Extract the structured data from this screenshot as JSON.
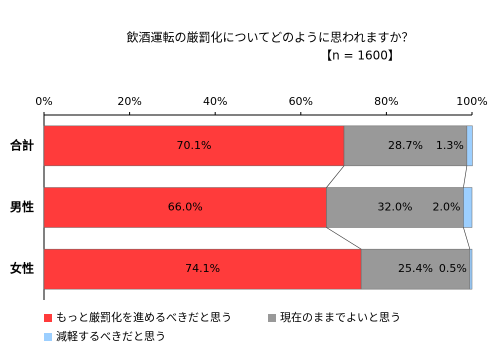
{
  "chart_data": {
    "type": "bar",
    "orientation": "horizontal",
    "stacked": true,
    "title": "飲酒運転の厳罰化についてどのように思われますか？",
    "subtitle": "【n = 1600】",
    "categories": [
      "合計",
      "男性",
      "女性"
    ],
    "series": [
      {
        "name": "もっと厳罰化を進めるべきだと思う",
        "color": "#ff3b3b",
        "values": [
          70.1,
          66.0,
          74.1
        ],
        "value_labels": [
          "70.1%",
          "66.0%",
          "74.1%"
        ]
      },
      {
        "name": "現在のままでよいと思う",
        "color": "#999999",
        "values": [
          28.7,
          32.0,
          25.4
        ],
        "value_labels": [
          "28.7%",
          "32.0%",
          "25.4%"
        ]
      },
      {
        "name": "減軽するべきだと思う",
        "color": "#9ccfff",
        "values": [
          1.3,
          2.0,
          0.5
        ],
        "value_labels": [
          "1.3%",
          "2.0%",
          "0.5%"
        ]
      }
    ],
    "xlim": [
      0,
      100
    ],
    "xticks": [
      {
        "value": 0,
        "label": "0%"
      },
      {
        "value": 20,
        "label": "20%"
      },
      {
        "value": 40,
        "label": "40%"
      },
      {
        "value": 60,
        "label": "60%"
      },
      {
        "value": 80,
        "label": "80%"
      },
      {
        "value": 100,
        "label": "100%"
      }
    ]
  }
}
